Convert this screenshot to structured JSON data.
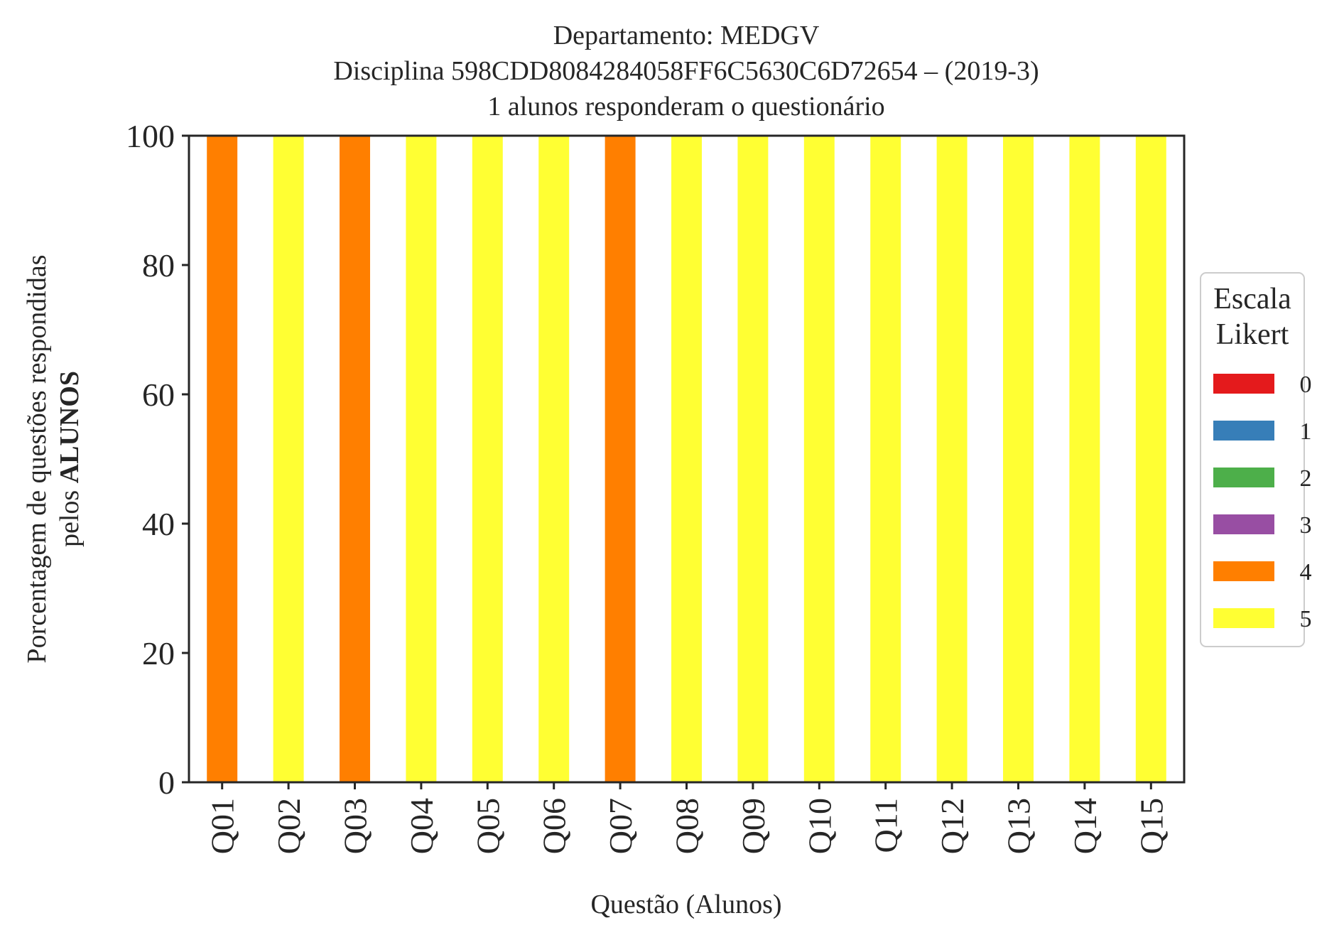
{
  "chart_data": {
    "type": "bar",
    "stacked": true,
    "title_lines": [
      "Departamento: MEDGV",
      "Disciplina 598CDD8084284058FF6C5630C6D72654 – (2019-3)",
      "1 alunos responderam o questionário"
    ],
    "xlabel": "Questão (Alunos)",
    "ylabel_line1": "Porcentagem de questões respondidas",
    "ylabel_line2_prefix": "pelos ",
    "ylabel_line2_bold": "ALUNOS",
    "ylim": [
      0,
      100
    ],
    "yticks": [
      0,
      20,
      40,
      60,
      80,
      100
    ],
    "ytick_labels": [
      "0",
      "20",
      "40",
      "60",
      "80",
      "100"
    ],
    "categories": [
      "Q01",
      "Q02",
      "Q03",
      "Q04",
      "Q05",
      "Q06",
      "Q07",
      "Q08",
      "Q09",
      "Q10",
      "Q11",
      "Q12",
      "Q13",
      "Q14",
      "Q15"
    ],
    "series": [
      {
        "name": "0",
        "color": "#e41a1c",
        "values": [
          0,
          0,
          0,
          0,
          0,
          0,
          0,
          0,
          0,
          0,
          0,
          0,
          0,
          0,
          0
        ]
      },
      {
        "name": "1",
        "color": "#377eb8",
        "values": [
          0,
          0,
          0,
          0,
          0,
          0,
          0,
          0,
          0,
          0,
          0,
          0,
          0,
          0,
          0
        ]
      },
      {
        "name": "2",
        "color": "#4daf4a",
        "values": [
          0,
          0,
          0,
          0,
          0,
          0,
          0,
          0,
          0,
          0,
          0,
          0,
          0,
          0,
          0
        ]
      },
      {
        "name": "3",
        "color": "#984ea3",
        "values": [
          0,
          0,
          0,
          0,
          0,
          0,
          0,
          0,
          0,
          0,
          0,
          0,
          0,
          0,
          0
        ]
      },
      {
        "name": "4",
        "color": "#ff7f00",
        "values": [
          100,
          0,
          100,
          0,
          0,
          0,
          100,
          0,
          0,
          0,
          0,
          0,
          0,
          0,
          0
        ]
      },
      {
        "name": "5",
        "color": "#ffff33",
        "values": [
          0,
          100,
          0,
          100,
          100,
          100,
          0,
          100,
          100,
          100,
          100,
          100,
          100,
          100,
          100
        ]
      }
    ],
    "legend": {
      "title_lines": [
        "Escala",
        "Likert"
      ],
      "placement": "right"
    },
    "grid": false
  }
}
